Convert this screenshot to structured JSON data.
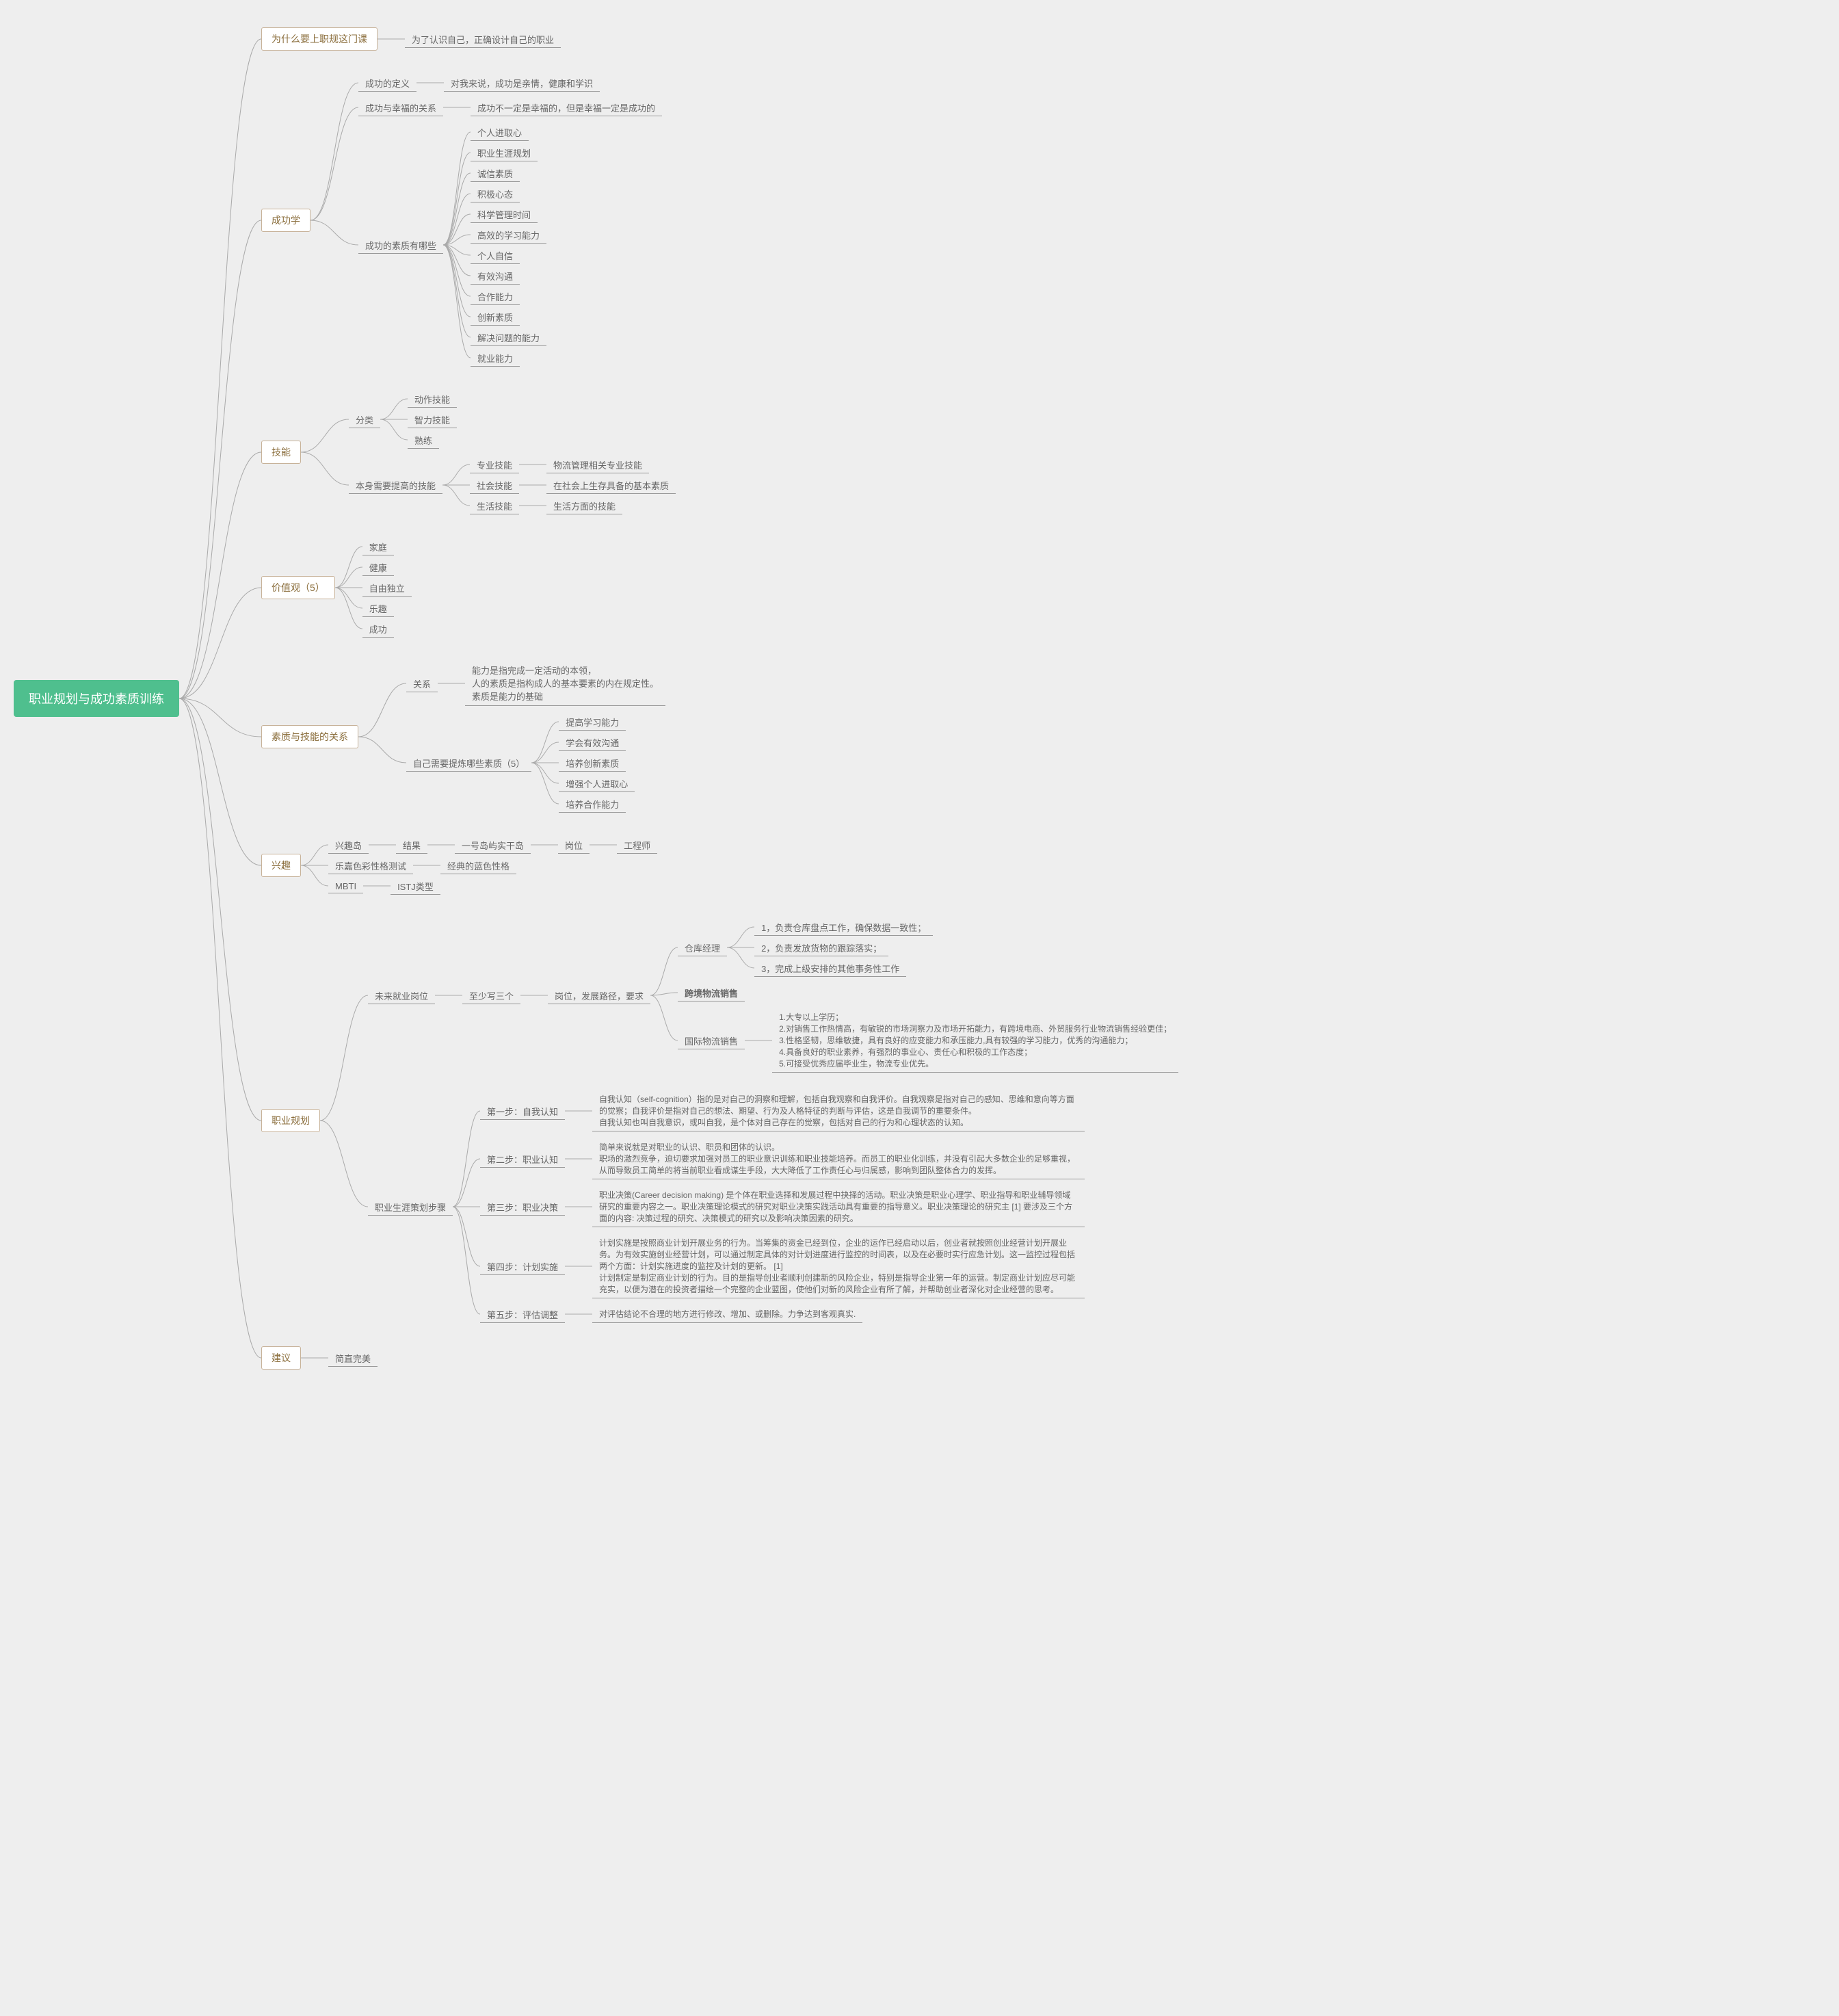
{
  "colors": {
    "bg": "#eeeeee",
    "root_bg": "#4fbf8e",
    "root_text": "#ffffff",
    "box_border": "#c7b299",
    "box_text": "#8a6d3b",
    "label_text": "#666666",
    "line": "#aaaaaa"
  },
  "root": "职业规划与成功素质训练",
  "b1": {
    "title": "为什么要上职规这门课",
    "c1": "为了认识自己，正确设计自己的职业"
  },
  "b2": {
    "title": "成功学",
    "def_l": "成功的定义",
    "def_v": "对我来说，成功是亲情，健康和学识",
    "rel_l": "成功与幸福的关系",
    "rel_v": "成功不一定是幸福的，但是幸福一定是成功的",
    "q_l": "成功的素质有哪些",
    "q": [
      "个人进取心",
      "职业生涯规划",
      "诚信素质",
      "积极心态",
      "科学管理时间",
      "高效的学习能力",
      "个人自信",
      "有效沟通",
      "合作能力",
      "创新素质",
      "解决问题的能力",
      "就业能力"
    ]
  },
  "b3": {
    "title": "技能",
    "cat_l": "分类",
    "cat": [
      "动作技能",
      "智力技能",
      "熟练"
    ],
    "own_l": "本身需要提高的技能",
    "own": [
      {
        "l": "专业技能",
        "v": "物流管理相关专业技能"
      },
      {
        "l": "社会技能",
        "v": "在社会上生存具备的基本素质"
      },
      {
        "l": "生活技能",
        "v": "生活方面的技能"
      }
    ]
  },
  "b4": {
    "title": "价值观（5）",
    "items": [
      "家庭",
      "健康",
      "自由独立",
      "乐趣",
      "成功"
    ]
  },
  "b5": {
    "title": "素质与技能的关系",
    "rel_l": "关系",
    "rel_v": "能力是指完成一定活动的本领，\n人的素质是指构成人的基本要素的内在规定性。\n素质是能力的基础",
    "dev_l": "自己需要提炼哪些素质（5）",
    "dev": [
      "提高学习能力",
      "学会有效沟通",
      "培养创新素质",
      "增强个人进取心",
      "培养合作能力"
    ]
  },
  "b6": {
    "title": "兴趣",
    "r1a": "兴趣岛",
    "r1b": "结果",
    "r1c": "一号岛屿实干岛",
    "r1d": "岗位",
    "r1e": "工程师",
    "r2a": "乐嘉色彩性格测试",
    "r2b": "经典的蓝色性格",
    "r3a": "MBTI",
    "r3b": "ISTJ类型"
  },
  "b7": {
    "title": "职业规划",
    "fut_l": "未来就业岗位",
    "fut_v": "至少写三个",
    "fut_w": "岗位，发展路径，要求",
    "ck_l": "仓库经理",
    "ck": [
      "1，负责仓库盘点工作，确保数据一致性；",
      "2，负责发放货物的跟踪落实；",
      "3，完成上级安排的其他事务性工作"
    ],
    "kj_l": "跨境物流销售",
    "gj_l": "国际物流销售",
    "gj": "1.大专以上学历；\n2.对销售工作热情高，有敏锐的市场洞察力及市场开拓能力，有跨境电商、外贸服务行业物流销售经验更佳；\n3.性格坚韧，思维敏捷，具有良好的应变能力和承压能力,具有较强的学习能力，优秀的沟通能力；\n4.具备良好的职业素养，有强烈的事业心、责任心和积极的工作态度；\n5.可接受优秀应届毕业生，物流专业优先。",
    "plan_l": "职业生涯策划步骤",
    "s1l": "第一步：自我认知",
    "s1v": "自我认知（self-cognition）指的是对自己的洞察和理解，包括自我观察和自我评价。自我观察是指对自己的感知、思维和意向等方面的觉察；自我评价是指对自己的想法、期望、行为及人格特征的判断与评估，这是自我调节的重要条件。\n自我认知也叫自我意识，或叫自我，是个体对自己存在的觉察，包括对自己的行为和心理状态的认知。",
    "s2l": "第二步：职业认知",
    "s2v": "简单来说就是对职业的认识、职员和团体的认识。\n职场的激烈竞争，迫切要求加强对员工的职业意识训练和职业技能培养。而员工的职业化训练，并没有引起大多数企业的足够重视，从而导致员工简单的将当前职业看成谋生手段，大大降低了工作责任心与归属感，影响到团队整体合力的发挥。",
    "s3l": "第三步：职业决策",
    "s3v": "职业决策(Career decision making) 是个体在职业选择和发展过程中抉择的活动。职业决策是职业心理学、职业指导和职业辅导领域研究的重要内容之一。职业决策理论模式的研究对职业决策实践活动具有重要的指导意义。职业决策理论的研究主 [1] 要涉及三个方面的内容: 决策过程的研究、决策模式的研究以及影响决策因素的研究。",
    "s4l": "第四步：计划实施",
    "s4v": "计划实施是按照商业计划开展业务的行为。当筹集的资金已经到位，企业的运作已经启动以后，创业者就按照创业经营计划开展业务。为有效实施创业经营计划，可以通过制定具体的对计划进度进行监控的时间表，以及在必要时实行应急计划。这一监控过程包括两个方面：计划实施进度的监控及计划的更新。 [1]\n计划制定是制定商业计划的行为。目的是指导创业者顺利创建新的风险企业，特别是指导企业第一年的运营。制定商业计划应尽可能充实，以便为潜在的投资者描绘一个完整的企业蓝图，使他们对新的风险企业有所了解，并帮助创业者深化对企业经营的思考。",
    "s5l": "第五步：评估调整",
    "s5v": "对评估结论不合理的地方进行修改、增加、或删除。力争达到客观真实."
  },
  "b8": {
    "title": "建议",
    "v": "简直完美"
  }
}
